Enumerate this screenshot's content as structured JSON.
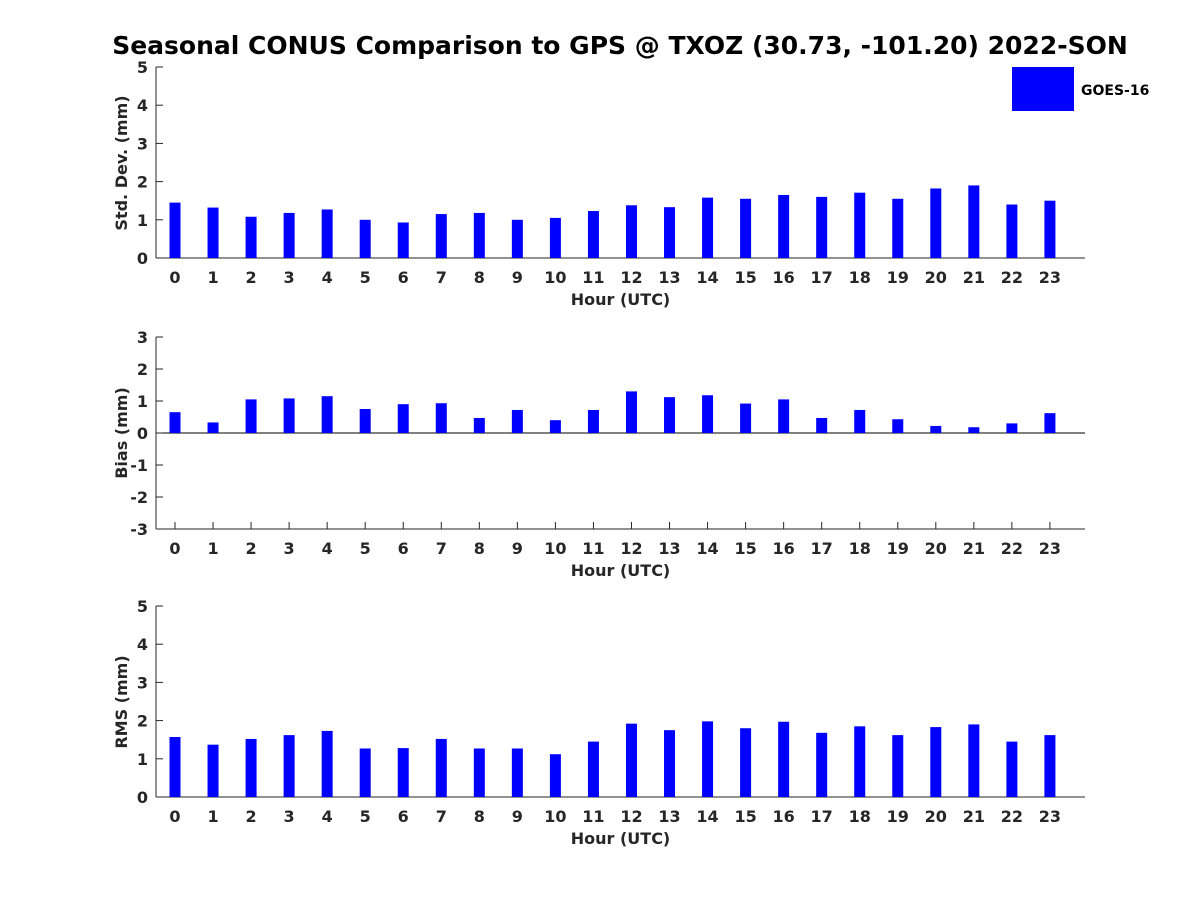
{
  "chart_data": {
    "title": "Seasonal CONUS Comparison to GPS @ TXOZ (30.73, -101.20) 2022-SON",
    "legend": {
      "label": "GOES-16",
      "color": "#0000ff",
      "placement": "top-right"
    },
    "panels": [
      {
        "type": "bar",
        "ylabel": "Std. Dev. (mm)",
        "xlabel": "Hour (UTC)",
        "ylim": [
          0,
          5
        ],
        "yticks": [
          0,
          1,
          2,
          3,
          4,
          5
        ],
        "x": [
          0,
          1,
          2,
          3,
          4,
          5,
          6,
          7,
          8,
          9,
          10,
          11,
          12,
          13,
          14,
          15,
          16,
          17,
          18,
          19,
          20,
          21,
          22,
          23
        ],
        "series": [
          {
            "name": "GOES-16",
            "color": "#0000ff",
            "values": [
              1.45,
              1.32,
              1.08,
              1.18,
              1.27,
              1.0,
              0.93,
              1.15,
              1.18,
              1.0,
              1.05,
              1.23,
              1.38,
              1.33,
              1.58,
              1.55,
              1.65,
              1.6,
              1.71,
              1.55,
              1.82,
              1.9,
              1.4,
              1.5
            ]
          }
        ]
      },
      {
        "type": "bar",
        "ylabel": "Bias (mm)",
        "xlabel": "Hour (UTC)",
        "ylim": [
          -3,
          3
        ],
        "yticks": [
          -3,
          -2,
          -1,
          0,
          1,
          2,
          3
        ],
        "x": [
          0,
          1,
          2,
          3,
          4,
          5,
          6,
          7,
          8,
          9,
          10,
          11,
          12,
          13,
          14,
          15,
          16,
          17,
          18,
          19,
          20,
          21,
          22,
          23
        ],
        "series": [
          {
            "name": "GOES-16",
            "color": "#0000ff",
            "values": [
              0.65,
              0.33,
              1.05,
              1.08,
              1.15,
              0.75,
              0.9,
              0.93,
              0.47,
              0.72,
              0.4,
              0.72,
              1.3,
              1.12,
              1.18,
              0.92,
              1.05,
              0.47,
              0.72,
              0.43,
              0.22,
              0.18,
              0.3,
              0.62
            ]
          }
        ]
      },
      {
        "type": "bar",
        "ylabel": "RMS (mm)",
        "xlabel": "Hour (UTC)",
        "ylim": [
          0,
          5
        ],
        "yticks": [
          0,
          1,
          2,
          3,
          4,
          5
        ],
        "x": [
          0,
          1,
          2,
          3,
          4,
          5,
          6,
          7,
          8,
          9,
          10,
          11,
          12,
          13,
          14,
          15,
          16,
          17,
          18,
          19,
          20,
          21,
          22,
          23
        ],
        "series": [
          {
            "name": "GOES-16",
            "color": "#0000ff",
            "values": [
              1.57,
              1.37,
              1.52,
              1.62,
              1.73,
              1.27,
              1.28,
              1.52,
              1.27,
              1.27,
              1.12,
              1.45,
              1.92,
              1.75,
              1.98,
              1.8,
              1.97,
              1.68,
              1.85,
              1.62,
              1.83,
              1.9,
              1.45,
              1.62
            ]
          }
        ]
      }
    ]
  }
}
